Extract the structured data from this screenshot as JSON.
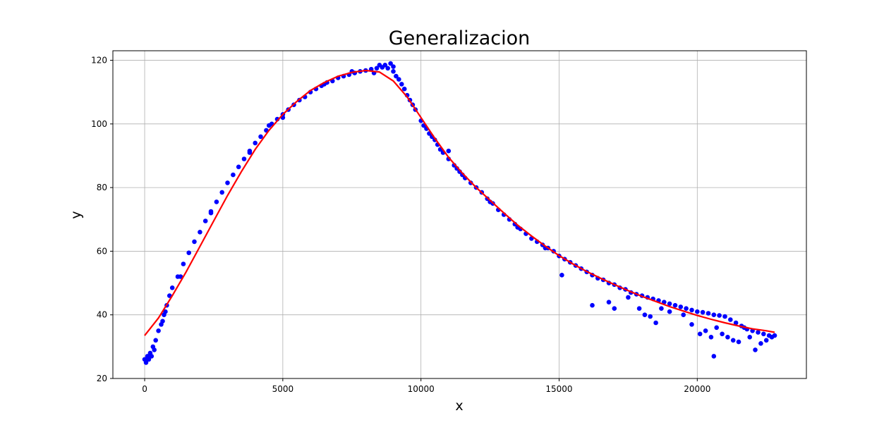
{
  "chart_data": {
    "type": "scatter",
    "title": "Generalizacion",
    "xlabel": "x",
    "ylabel": "y",
    "xlim": [
      -1150,
      23950
    ],
    "ylim": [
      20,
      123
    ],
    "xticks": [
      0,
      5000,
      10000,
      15000,
      20000
    ],
    "yticks": [
      20,
      40,
      60,
      80,
      100,
      120
    ],
    "grid": true,
    "series": [
      {
        "kind": "scatter",
        "color": "#0000ff",
        "points": [
          [
            0,
            26
          ],
          [
            100,
            27
          ],
          [
            200,
            28
          ],
          [
            300,
            30
          ],
          [
            400,
            32
          ],
          [
            500,
            35
          ],
          [
            600,
            37
          ],
          [
            700,
            40
          ],
          [
            800,
            43
          ],
          [
            900,
            46
          ],
          [
            1000,
            48.5
          ],
          [
            1200,
            52
          ],
          [
            1400,
            56
          ],
          [
            1600,
            59.5
          ],
          [
            1800,
            63
          ],
          [
            2000,
            66
          ],
          [
            2200,
            69.5
          ],
          [
            2400,
            72.5
          ],
          [
            2600,
            75.5
          ],
          [
            2800,
            78.5
          ],
          [
            3000,
            81.5
          ],
          [
            3200,
            84
          ],
          [
            3400,
            86.5
          ],
          [
            3600,
            89
          ],
          [
            3800,
            91.5
          ],
          [
            4000,
            94
          ],
          [
            4200,
            96
          ],
          [
            4400,
            98
          ],
          [
            4600,
            100
          ],
          [
            4800,
            101.5
          ],
          [
            5000,
            103
          ],
          [
            5200,
            104.5
          ],
          [
            5400,
            106
          ],
          [
            5600,
            107.5
          ],
          [
            5800,
            108.5
          ],
          [
            6000,
            110
          ],
          [
            6200,
            111
          ],
          [
            6400,
            112
          ],
          [
            6600,
            113
          ],
          [
            6800,
            113.5
          ],
          [
            7000,
            114.5
          ],
          [
            7200,
            115
          ],
          [
            7400,
            115.5
          ],
          [
            7600,
            116
          ],
          [
            7800,
            116.5
          ],
          [
            8000,
            116.8
          ],
          [
            8200,
            117.2
          ],
          [
            8400,
            117.5
          ],
          [
            8600,
            117.8
          ],
          [
            8800,
            117.5
          ],
          [
            9000,
            116.5
          ],
          [
            9200,
            114
          ],
          [
            9400,
            111
          ],
          [
            9600,
            107.5
          ],
          [
            9800,
            104.5
          ],
          [
            10000,
            101
          ],
          [
            10200,
            98.5
          ],
          [
            10400,
            96
          ],
          [
            10600,
            93.5
          ],
          [
            10800,
            91
          ],
          [
            11000,
            89
          ],
          [
            11200,
            87
          ],
          [
            11400,
            85
          ],
          [
            11600,
            83
          ],
          [
            11800,
            81.5
          ],
          [
            12000,
            80
          ],
          [
            12200,
            78.5
          ],
          [
            12400,
            76.5
          ],
          [
            12600,
            75
          ],
          [
            12800,
            73
          ],
          [
            13000,
            71.5
          ],
          [
            13200,
            70
          ],
          [
            13400,
            68.5
          ],
          [
            13600,
            67
          ],
          [
            13800,
            65.5
          ],
          [
            14000,
            64
          ],
          [
            14200,
            63
          ],
          [
            14400,
            62
          ],
          [
            14600,
            61
          ],
          [
            14800,
            60
          ],
          [
            15000,
            58.5
          ],
          [
            15200,
            57.5
          ],
          [
            15400,
            56.5
          ],
          [
            15600,
            55.5
          ],
          [
            15800,
            54.5
          ],
          [
            16000,
            53.5
          ],
          [
            16200,
            52.5
          ],
          [
            16400,
            51.5
          ],
          [
            16600,
            51
          ],
          [
            16800,
            50
          ],
          [
            17000,
            49.5
          ],
          [
            17200,
            48.5
          ],
          [
            17400,
            48
          ],
          [
            17600,
            47
          ],
          [
            17800,
            46.5
          ],
          [
            18000,
            46
          ],
          [
            18200,
            45.5
          ],
          [
            18400,
            45
          ],
          [
            18600,
            44.5
          ],
          [
            18800,
            44
          ],
          [
            19000,
            43.5
          ],
          [
            19200,
            43
          ],
          [
            19400,
            42.5
          ],
          [
            19600,
            42
          ],
          [
            19800,
            41.5
          ],
          [
            20000,
            41
          ],
          [
            20200,
            40.8
          ],
          [
            20400,
            40.5
          ],
          [
            20600,
            40
          ],
          [
            20800,
            39.8
          ],
          [
            21000,
            39.5
          ],
          [
            21200,
            38.5
          ],
          [
            21400,
            37.5
          ],
          [
            21600,
            36.5
          ],
          [
            21800,
            35.5
          ],
          [
            22000,
            35
          ],
          [
            22200,
            34.5
          ],
          [
            22400,
            34
          ],
          [
            22600,
            33.5
          ],
          [
            22800,
            33.5
          ],
          [
            50,
            25
          ],
          [
            150,
            26
          ],
          [
            250,
            27
          ],
          [
            350,
            29
          ],
          [
            650,
            38
          ],
          [
            750,
            41
          ],
          [
            1300,
            52
          ],
          [
            2400,
            72
          ],
          [
            3800,
            91
          ],
          [
            4500,
            99.5
          ],
          [
            5000,
            102
          ],
          [
            6500,
            112.5
          ],
          [
            7500,
            116.5
          ],
          [
            8300,
            116
          ],
          [
            8700,
            118.5
          ],
          [
            9100,
            115
          ],
          [
            10300,
            97
          ],
          [
            10700,
            92
          ],
          [
            11500,
            84
          ],
          [
            12500,
            75.5
          ],
          [
            13500,
            67.5
          ],
          [
            14500,
            61
          ],
          [
            15100,
            52.5
          ],
          [
            16200,
            43
          ],
          [
            16800,
            44
          ],
          [
            17000,
            42
          ],
          [
            17500,
            45.5
          ],
          [
            17900,
            42
          ],
          [
            18100,
            40
          ],
          [
            18300,
            39.5
          ],
          [
            18500,
            37.5
          ],
          [
            18700,
            42
          ],
          [
            19000,
            41
          ],
          [
            19500,
            40
          ],
          [
            19800,
            37
          ],
          [
            20100,
            34
          ],
          [
            20300,
            35
          ],
          [
            20500,
            33
          ],
          [
            20600,
            27
          ],
          [
            20700,
            36
          ],
          [
            20900,
            34
          ],
          [
            21100,
            33
          ],
          [
            21300,
            32
          ],
          [
            21500,
            31.5
          ],
          [
            21700,
            36
          ],
          [
            21900,
            33
          ],
          [
            22100,
            29
          ],
          [
            22300,
            31
          ],
          [
            22500,
            32
          ],
          [
            22700,
            33
          ],
          [
            9000,
            118
          ],
          [
            8900,
            119
          ],
          [
            8500,
            118.5
          ],
          [
            9300,
            112.5
          ],
          [
            9500,
            109
          ],
          [
            9700,
            106
          ],
          [
            10100,
            99.5
          ],
          [
            10500,
            95
          ],
          [
            11000,
            91.5
          ],
          [
            11300,
            86
          ]
        ]
      },
      {
        "kind": "line",
        "color": "#ff0000",
        "points": [
          [
            0,
            33.5
          ],
          [
            500,
            39
          ],
          [
            1000,
            46
          ],
          [
            1500,
            53.5
          ],
          [
            2000,
            61.5
          ],
          [
            2500,
            69.5
          ],
          [
            3000,
            77.5
          ],
          [
            3500,
            85
          ],
          [
            4000,
            92
          ],
          [
            4500,
            98
          ],
          [
            5000,
            103
          ],
          [
            5500,
            107
          ],
          [
            6000,
            110.5
          ],
          [
            6500,
            113
          ],
          [
            7000,
            115
          ],
          [
            7500,
            116.2
          ],
          [
            8000,
            116.8
          ],
          [
            8500,
            116.3
          ],
          [
            9000,
            113.5
          ],
          [
            9500,
            108.5
          ],
          [
            10000,
            102
          ],
          [
            10500,
            95.5
          ],
          [
            11000,
            89.5
          ],
          [
            11500,
            84.5
          ],
          [
            12000,
            80
          ],
          [
            12500,
            76
          ],
          [
            13000,
            72
          ],
          [
            13500,
            68.2
          ],
          [
            14000,
            64.8
          ],
          [
            14500,
            61.6
          ],
          [
            15000,
            58.6
          ],
          [
            15500,
            56
          ],
          [
            16000,
            53.6
          ],
          [
            16500,
            51.5
          ],
          [
            17000,
            49.5
          ],
          [
            17500,
            47.6
          ],
          [
            18000,
            45.8
          ],
          [
            18500,
            44.2
          ],
          [
            19000,
            42.6
          ],
          [
            19500,
            41.2
          ],
          [
            20000,
            39.8
          ],
          [
            20500,
            38.6
          ],
          [
            21000,
            37.5
          ],
          [
            21500,
            36.5
          ],
          [
            22000,
            35.6
          ],
          [
            22500,
            35
          ],
          [
            22800,
            34.5
          ]
        ]
      }
    ]
  }
}
